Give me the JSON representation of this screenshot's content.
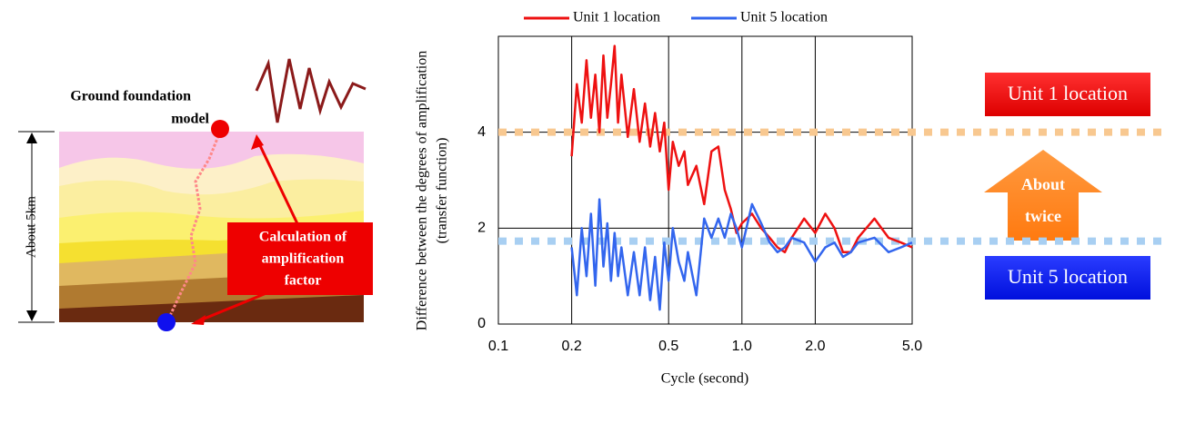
{
  "diagram": {
    "model_label": [
      "Ground foundation",
      "model"
    ],
    "depth_label": "About 5km",
    "calc_label": [
      "Calculation of",
      "amplification",
      "factor"
    ]
  },
  "chart_data": {
    "type": "line",
    "y_label": [
      "Difference between the degrees of amplification",
      "(transfer function)"
    ],
    "x_label": "Cycle (second)",
    "log_x": true,
    "grid": true,
    "xlim": [
      0.1,
      5
    ],
    "ylim": [
      0,
      6
    ],
    "xticks": [
      0.1,
      0.2,
      0.5,
      {
        "value": 1,
        "label": "1.0"
      },
      {
        "value": 2,
        "label": "2.0"
      },
      {
        "value": 5,
        "label": "5.0"
      }
    ],
    "yticks": [
      0,
      2,
      4
    ],
    "x": [
      0.2,
      0.21,
      0.22,
      0.23,
      0.24,
      0.25,
      0.26,
      0.27,
      0.28,
      0.29,
      0.3,
      0.31,
      0.32,
      0.34,
      0.36,
      0.38,
      0.4,
      0.42,
      0.44,
      0.46,
      0.48,
      0.5,
      0.52,
      0.55,
      0.58,
      0.6,
      0.65,
      0.7,
      0.75,
      0.8,
      0.85,
      0.9,
      0.95,
      1.0,
      1.1,
      1.2,
      1.3,
      1.4,
      1.5,
      1.6,
      1.8,
      2.0,
      2.2,
      2.4,
      2.6,
      2.8,
      3.0,
      3.5,
      4.0,
      4.5,
      5.0
    ],
    "series": [
      {
        "name": "Unit 1 location",
        "color": "#ee1111",
        "values": [
          3.5,
          5.0,
          4.2,
          5.5,
          4.3,
          5.2,
          4.0,
          5.6,
          4.3,
          5.0,
          5.8,
          4.2,
          5.2,
          3.9,
          4.9,
          3.8,
          4.6,
          3.7,
          4.4,
          3.6,
          4.2,
          2.8,
          3.8,
          3.3,
          3.6,
          2.9,
          3.3,
          2.5,
          3.6,
          3.7,
          2.8,
          2.4,
          1.9,
          2.1,
          2.3,
          2.0,
          1.8,
          1.6,
          1.5,
          1.8,
          2.2,
          1.9,
          2.3,
          2.0,
          1.5,
          1.5,
          1.8,
          2.2,
          1.8,
          1.7,
          1.6
        ]
      },
      {
        "name": "Unit 5 location",
        "color": "#3366ee",
        "values": [
          1.6,
          0.6,
          2.0,
          1.0,
          2.3,
          0.8,
          2.6,
          1.2,
          2.1,
          0.9,
          1.9,
          1.0,
          1.6,
          0.6,
          1.5,
          0.6,
          1.6,
          0.5,
          1.4,
          0.3,
          1.7,
          0.9,
          2.0,
          1.3,
          0.9,
          1.5,
          0.6,
          2.2,
          1.8,
          2.2,
          1.8,
          2.3,
          2.0,
          1.6,
          2.5,
          2.1,
          1.7,
          1.5,
          1.6,
          1.8,
          1.7,
          1.3,
          1.6,
          1.7,
          1.4,
          1.5,
          1.7,
          1.8,
          1.5,
          1.6,
          1.7
        ]
      }
    ],
    "reference_lines": [
      {
        "value": 4,
        "color": "#f8c890"
      },
      {
        "value": 1.73,
        "color": "#a8cff2"
      }
    ],
    "annotations": {
      "unit1": "Unit 1 location",
      "unit5": "Unit 5 location",
      "ratio": [
        "About",
        "twice"
      ]
    }
  }
}
